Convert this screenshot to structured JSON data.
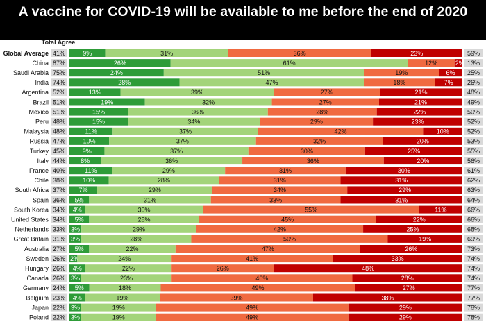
{
  "title": "A vaccine for COVID-19 will be available to me before the end of 2020",
  "chart_data": {
    "type": "bar",
    "orientation": "horizontal",
    "stacked": true,
    "left_column_header": "Total Agree",
    "colors": {
      "strongly_agree": "#2e9c38",
      "somewhat_agree": "#a3d47a",
      "somewhat_disagree": "#f06a40",
      "strongly_disagree": "#c00000",
      "total_cell": "#d9d9d9"
    },
    "categories": [
      "Global Average",
      "China",
      "Saudi Arabia",
      "India",
      "Argentina",
      "Brazil",
      "Mexico",
      "Peru",
      "Malaysia",
      "Russia",
      "Turkey",
      "Italy",
      "France",
      "Chile",
      "South Africa",
      "Spain",
      "South Korea",
      "United States",
      "Netherlands",
      "Great Britain",
      "Australia",
      "Sweden",
      "Hungary",
      "Canada",
      "Germany",
      "Belgium",
      "Japan",
      "Poland"
    ],
    "total_agree": [
      "41%",
      "87%",
      "75%",
      "74%",
      "52%",
      "51%",
      "51%",
      "48%",
      "48%",
      "47%",
      "45%",
      "44%",
      "40%",
      "38%",
      "37%",
      "36%",
      "34%",
      "34%",
      "33%",
      "31%",
      "27%",
      "26%",
      "26%",
      "26%",
      "24%",
      "23%",
      "22%",
      "22%"
    ],
    "total_disagree": [
      "59%",
      "13%",
      "25%",
      "26%",
      "48%",
      "49%",
      "50%",
      "52%",
      "52%",
      "53%",
      "55%",
      "56%",
      "61%",
      "62%",
      "63%",
      "64%",
      "66%",
      "66%",
      "68%",
      "69%",
      "73%",
      "74%",
      "74%",
      "74%",
      "77%",
      "77%",
      "78%",
      "78%"
    ],
    "series": [
      {
        "key": "strongly_agree",
        "values": [
          9,
          26,
          24,
          28,
          13,
          19,
          15,
          15,
          11,
          10,
          9,
          8,
          11,
          10,
          7,
          5,
          4,
          5,
          3,
          3,
          5,
          2,
          4,
          3,
          5,
          4,
          3,
          3
        ]
      },
      {
        "key": "somewhat_agree",
        "values": [
          31,
          61,
          51,
          47,
          39,
          32,
          36,
          34,
          37,
          37,
          37,
          36,
          29,
          28,
          29,
          31,
          30,
          28,
          29,
          28,
          22,
          24,
          22,
          23,
          18,
          19,
          19,
          19
        ]
      },
      {
        "key": "somewhat_disagree",
        "values": [
          36,
          12,
          19,
          18,
          27,
          27,
          28,
          29,
          42,
          32,
          30,
          36,
          31,
          31,
          34,
          33,
          55,
          45,
          42,
          50,
          47,
          41,
          26,
          46,
          49,
          39,
          49,
          49
        ]
      },
      {
        "key": "strongly_disagree",
        "values": [
          23,
          2,
          6,
          7,
          21,
          21,
          22,
          23,
          10,
          20,
          25,
          20,
          30,
          31,
          29,
          31,
          11,
          22,
          25,
          19,
          26,
          33,
          48,
          28,
          27,
          38,
          29,
          29
        ]
      }
    ],
    "value_labels": [
      [
        "9%",
        "31%",
        "36%",
        "23%"
      ],
      [
        "26%",
        "61%",
        "12%",
        "2%"
      ],
      [
        "24%",
        "51%",
        "19%",
        "6%"
      ],
      [
        "28%",
        "47%",
        "18%",
        "7%"
      ],
      [
        "13%",
        "39%",
        "27%",
        "21%"
      ],
      [
        "19%",
        "32%",
        "27%",
        "21%"
      ],
      [
        "15%",
        "36%",
        "28%",
        "22%"
      ],
      [
        "15%",
        "34%",
        "29%",
        "23%"
      ],
      [
        "11%",
        "37%",
        "42%",
        "10%"
      ],
      [
        "10%",
        "37%",
        "32%",
        "20%"
      ],
      [
        "9%",
        "37%",
        "30%",
        "25%"
      ],
      [
        "8%",
        "36%",
        "36%",
        "20%"
      ],
      [
        "11%",
        "29%",
        "31%",
        "30%"
      ],
      [
        "10%",
        "28%",
        "31%",
        "31%"
      ],
      [
        "7%",
        "29%",
        "34%",
        "29%"
      ],
      [
        "5%",
        "31%",
        "33%",
        "31%"
      ],
      [
        "4%",
        "30%",
        "55%",
        "11%"
      ],
      [
        "5%",
        "28%",
        "45%",
        "22%"
      ],
      [
        "3%",
        "29%",
        "42%",
        "25%"
      ],
      [
        "3%",
        "28%",
        "50%",
        "19%"
      ],
      [
        "5%",
        "22%",
        "47%",
        "26%"
      ],
      [
        "2%",
        "24%",
        "41%",
        "33%"
      ],
      [
        "4%",
        "22%",
        "26%",
        "48%"
      ],
      [
        "3%",
        "23%",
        "46%",
        "28%"
      ],
      [
        "5%",
        "18%",
        "49%",
        "27%"
      ],
      [
        "4%",
        "19%",
        "39%",
        "38%"
      ],
      [
        "3%",
        "19%",
        "49%",
        "29%"
      ],
      [
        "3%",
        "19%",
        "49%",
        "29%"
      ]
    ]
  }
}
